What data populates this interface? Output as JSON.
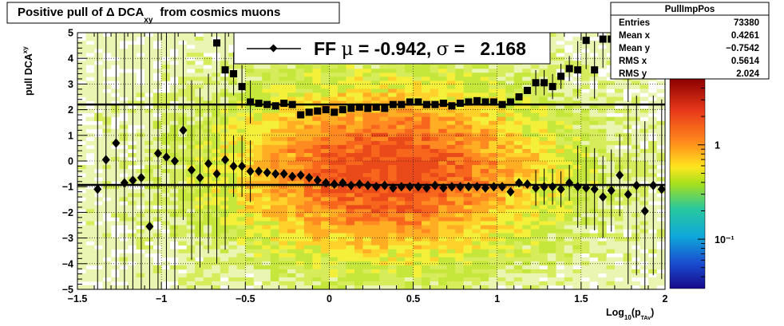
{
  "chart_data": {
    "type": "heatmap",
    "title": "Positive pull of Δ DCA",
    "title_sub": "xy",
    "title_suffix": "from cosmics muons",
    "ylabel": "pull DCA",
    "ylabel_sub": "xy",
    "xlabel": "Log",
    "xlabel_sub1": "10",
    "xlabel_mid": "(p",
    "xlabel_sub2": "TAv",
    "xlabel_end": ")",
    "xlim": [
      -1.5,
      2.0
    ],
    "ylim": [
      -5,
      5
    ],
    "x_ticks": [
      {
        "v": -1.5,
        "label": "−1.5"
      },
      {
        "v": -1.0,
        "label": "−1"
      },
      {
        "v": -0.5,
        "label": "−0.5"
      },
      {
        "v": 0,
        "label": "0"
      },
      {
        "v": 0.5,
        "label": "0.5"
      },
      {
        "v": 1.0,
        "label": "1"
      },
      {
        "v": 1.5,
        "label": "1.5"
      },
      {
        "v": 2.0,
        "label": "2"
      }
    ],
    "y_ticks": [
      {
        "v": 5,
        "label": "5"
      },
      {
        "v": 4,
        "label": "4"
      },
      {
        "v": 3,
        "label": "3"
      },
      {
        "v": 2,
        "label": "2"
      },
      {
        "v": 1,
        "label": "1"
      },
      {
        "v": 0,
        "label": "0"
      },
      {
        "v": -1,
        "label": "−1"
      },
      {
        "v": -2,
        "label": "−2"
      },
      {
        "v": -3,
        "label": "−3"
      },
      {
        "v": -4,
        "label": "−4"
      },
      {
        "v": -5,
        "label": "−5"
      }
    ],
    "colorbar_labels": [
      {
        "v": 1,
        "label": "1"
      },
      {
        "v": 0.1,
        "label": "10⁻¹"
      }
    ],
    "legend": {
      "text_prefix": "FF ",
      "mu": "μ",
      "text_mid": " = -0.942, ",
      "sigma": "σ",
      "text_end": " =   2.168"
    },
    "reference_lines": [
      2.2,
      -0.93
    ],
    "stats_box": {
      "title": "PullImpPos",
      "rows": [
        {
          "label": "Entries",
          "value": "73380"
        },
        {
          "label": "Mean x",
          "value": "0.4261"
        },
        {
          "label": "Mean y",
          "value": "−0.7542"
        },
        {
          "label": "RMS x",
          "value": "0.5614"
        },
        {
          "label": "RMS y",
          "value": "2.024"
        }
      ]
    },
    "series": [
      {
        "marker": "diamond",
        "x": [
          -1.38,
          -1.33,
          -1.27,
          -1.22,
          -1.17,
          -1.12,
          -1.07,
          -1.02,
          -0.97,
          -0.92,
          -0.87,
          -0.82,
          -0.77,
          -0.72,
          -0.67,
          -0.62,
          -0.57,
          -0.52,
          -0.47,
          -0.42,
          -0.37,
          -0.32,
          -0.27,
          -0.22,
          -0.17,
          -0.12,
          -0.07,
          -0.02,
          0.03,
          0.08,
          0.13,
          0.18,
          0.23,
          0.28,
          0.33,
          0.38,
          0.43,
          0.48,
          0.53,
          0.58,
          0.63,
          0.68,
          0.73,
          0.78,
          0.83,
          0.88,
          0.93,
          0.98,
          1.03,
          1.08,
          1.13,
          1.18,
          1.23,
          1.28,
          1.33,
          1.38,
          1.43,
          1.48,
          1.53,
          1.58,
          1.63,
          1.68,
          1.73,
          1.78,
          1.83,
          1.88,
          1.93,
          1.98
        ],
        "y": [
          -1.1,
          0.05,
          0.7,
          -0.85,
          -0.75,
          -0.65,
          -2.55,
          0.3,
          0.15,
          0.0,
          1.2,
          -0.35,
          -0.65,
          -0.1,
          -0.5,
          0.05,
          -0.2,
          -0.2,
          -0.4,
          -0.4,
          -0.45,
          -0.5,
          -0.5,
          -0.6,
          -0.55,
          -0.65,
          -0.75,
          -0.85,
          -0.9,
          -0.85,
          -0.95,
          -0.9,
          -0.95,
          -1.0,
          -0.95,
          -1.05,
          -1.0,
          -1.0,
          -1.0,
          -1.05,
          -0.95,
          -1.05,
          -1.0,
          -1.0,
          -1.0,
          -1.0,
          -1.05,
          -1.0,
          -1.0,
          -1.2,
          -0.85,
          -0.9,
          -1.05,
          -1.0,
          -1.0,
          -1.1,
          -0.85,
          -1.0,
          -1.05,
          -1.1,
          -1.4,
          -1.15,
          -0.55,
          -1.3,
          -0.95,
          -1.95,
          -0.95,
          -1.1
        ]
      },
      {
        "marker": "square",
        "x": [
          -0.67,
          -0.62,
          -0.57,
          -0.52,
          -0.47,
          -0.42,
          -0.37,
          -0.32,
          -0.27,
          -0.22,
          -0.17,
          -0.12,
          -0.07,
          -0.02,
          0.03,
          0.08,
          0.13,
          0.18,
          0.23,
          0.28,
          0.33,
          0.38,
          0.43,
          0.48,
          0.53,
          0.58,
          0.63,
          0.68,
          0.73,
          0.78,
          0.83,
          0.88,
          0.93,
          0.98,
          1.03,
          1.08,
          1.13,
          1.18,
          1.23,
          1.28,
          1.33,
          1.38,
          1.43,
          1.48,
          1.53,
          1.58,
          1.63,
          1.68,
          1.73,
          1.78
        ],
        "y": [
          4.6,
          3.55,
          3.4,
          2.9,
          2.3,
          2.25,
          2.2,
          2.15,
          2.25,
          2.2,
          1.8,
          1.9,
          1.95,
          2.0,
          1.9,
          2.0,
          2.05,
          2.1,
          2.05,
          2.1,
          2.05,
          2.2,
          2.2,
          2.3,
          2.3,
          2.2,
          2.2,
          2.25,
          2.15,
          2.25,
          2.3,
          2.35,
          2.3,
          2.3,
          2.2,
          2.3,
          2.5,
          2.75,
          3.05,
          3.05,
          2.9,
          3.3,
          3.6,
          3.55,
          4.7,
          3.55,
          4.75,
          4.75,
          4.75,
          4.75
        ]
      }
    ]
  }
}
